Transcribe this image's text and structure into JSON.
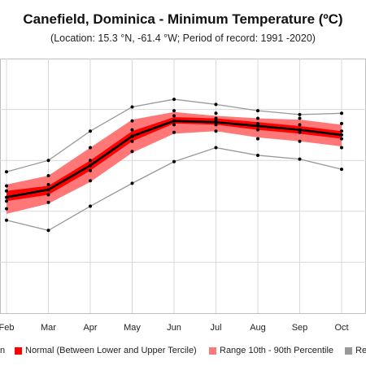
{
  "chart_data": {
    "type": "line",
    "title": "Canefield, Dominica - Minimum Temperature (ºC)",
    "subtitle": "(Location: 15.3 °N, -61.4 °W; Period of record: 1991 -2020)",
    "categories": [
      "Feb",
      "Mar",
      "Apr",
      "May",
      "Jun",
      "Jul",
      "Aug",
      "Sep",
      "Oct"
    ],
    "ylim": [
      0,
      100
    ],
    "grid": true,
    "legend_position": "bottom",
    "series": [
      {
        "name": "Mean",
        "values": [
          45.5,
          48.5,
          58,
          69.5,
          75.5,
          75,
          73.5,
          72,
          70
        ]
      },
      {
        "name": "Normal (Between Lower and Upper Tercile)",
        "lower": [
          44,
          46.5,
          56,
          67.5,
          74.5,
          74,
          72,
          70.5,
          68.5
        ],
        "upper": [
          48,
          50,
          60,
          71.5,
          77,
          76.5,
          75,
          73.5,
          71.5
        ]
      },
      {
        "name": "Range 10th - 90th Percentile",
        "lower": [
          39,
          43,
          51.5,
          63,
          70.5,
          71.5,
          69,
          67.5,
          65.5
        ],
        "upper": [
          50.5,
          54,
          65,
          76,
          79,
          77.5,
          76.5,
          76,
          74
        ]
      },
      {
        "name": "Range",
        "lower": [
          36.5,
          32.5,
          42,
          51,
          59.5,
          65,
          62,
          60.5,
          56.5
        ],
        "upper": [
          55.5,
          60,
          71.5,
          81,
          84,
          82,
          79.5,
          78,
          78.5
        ]
      }
    ],
    "dots": [
      [
        36.5,
        41,
        44,
        45.5,
        48,
        50,
        55.5
      ],
      [
        32.5,
        43.5,
        46.5,
        48.5,
        50.5,
        54,
        60
      ],
      [
        42,
        52,
        56,
        58,
        60,
        65,
        71.5
      ],
      [
        51,
        63.5,
        67.5,
        69.5,
        72,
        75.5,
        81
      ],
      [
        59.5,
        71,
        74,
        75.5,
        77.5,
        79.5,
        84
      ],
      [
        65,
        71.5,
        74,
        75.5,
        76.5,
        78.5,
        82
      ],
      [
        62,
        68.5,
        72,
        73.5,
        74.5,
        76.5,
        79.5
      ],
      [
        60.5,
        67.5,
        71,
        72,
        74,
        76.5,
        78
      ],
      [
        56.5,
        65,
        68.5,
        70,
        71.5,
        74.5,
        78.5
      ]
    ],
    "colors": {
      "mean": "#000000",
      "normal": "#ff0000",
      "percentile": "#ff7777",
      "range": "#999999",
      "grid": "#d9d9d9"
    }
  },
  "legend": {
    "mean_partial": "n",
    "normal": "Normal (Between Lower and Upper Tercile)",
    "percentile": "Range 10th - 90th Percentile",
    "range_partial": "Re"
  }
}
